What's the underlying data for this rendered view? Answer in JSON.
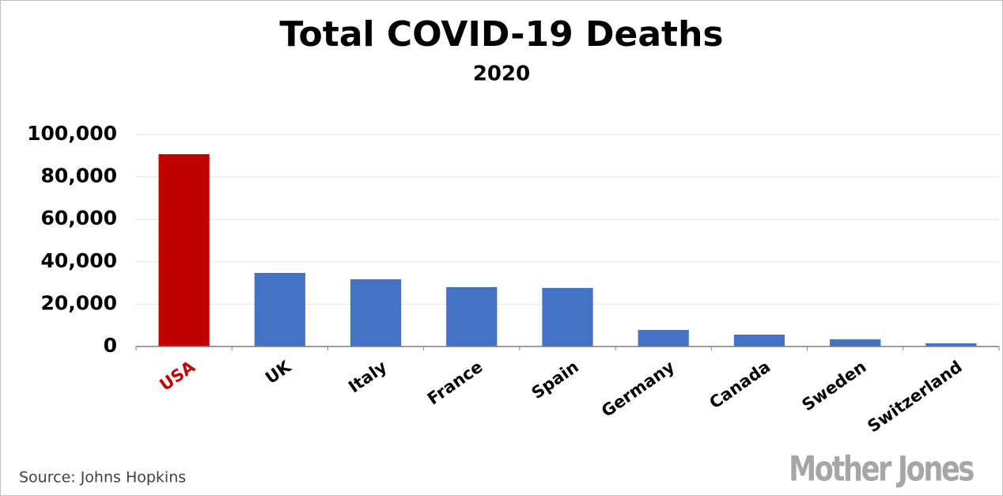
{
  "chart_data": {
    "type": "bar",
    "title": "Total COVID-19 Deaths",
    "subtitle": "2020",
    "categories": [
      "USA",
      "UK",
      "Italy",
      "France",
      "Spain",
      "Germany",
      "Canada",
      "Sweden",
      "Switzerland"
    ],
    "values": [
      90700,
      34700,
      31700,
      28000,
      27600,
      7800,
      5600,
      3400,
      1500
    ],
    "colors": [
      "#c00000",
      "#4472c4",
      "#4472c4",
      "#4472c4",
      "#4472c4",
      "#4472c4",
      "#4472c4",
      "#4472c4",
      "#4472c4"
    ],
    "ylim": [
      0,
      100000
    ],
    "yticks": [
      0,
      {
        "value": 20000,
        "label": "20,000"
      },
      {
        "value": 40000,
        "label": "40,000"
      },
      {
        "value": 60000,
        "label": "60,000"
      },
      {
        "value": 80000,
        "label": "80,000"
      },
      {
        "value": 100000,
        "label": "100,000"
      }
    ],
    "grid": true,
    "source": "Source: Johns Hopkins",
    "logo": "Mother Jones"
  }
}
